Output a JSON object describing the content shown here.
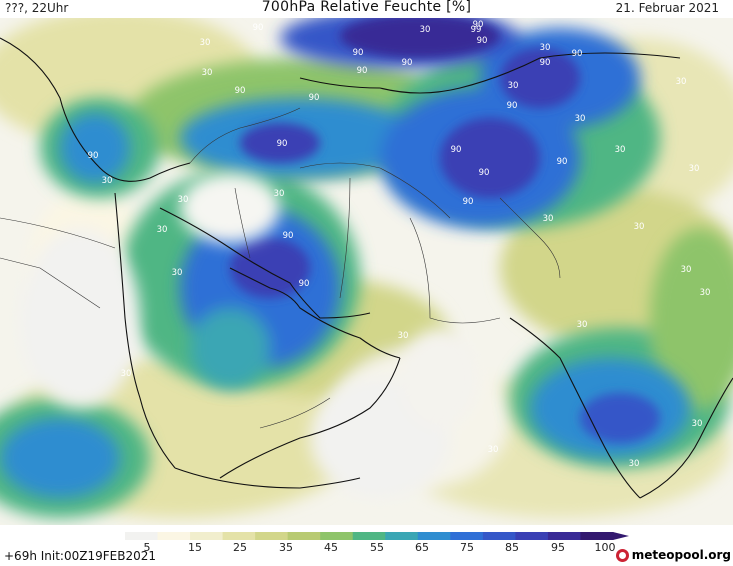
{
  "header": {
    "left": "???, 22Uhr",
    "title": "700hPa Relative Feuchte [%]",
    "date": "21. Februar 2021"
  },
  "footer": {
    "run_info": "+69h Init:00Z19FEB2021",
    "logo": "meteopool.org"
  },
  "colorbar": {
    "ticks": [
      "5",
      "15",
      "25",
      "35",
      "45",
      "55",
      "65",
      "75",
      "85",
      "95",
      "100"
    ],
    "colors": [
      "#f2f2f0",
      "#fbf6e4",
      "#f1eecd",
      "#e4e2a8",
      "#d2d68a",
      "#b8ca72",
      "#8ec46a",
      "#4fb684",
      "#3aa6b4",
      "#2f8dd0",
      "#2f6fd6",
      "#3557c8",
      "#3a40b4",
      "#392a96",
      "#33196f"
    ]
  },
  "map": {
    "contour_labels": [
      "90",
      "90",
      "90",
      "90",
      "90",
      "90",
      "90",
      "90",
      "90",
      "90",
      "90",
      "90",
      "90",
      "90",
      "90",
      "90",
      "90",
      "90",
      "90",
      "99",
      "30",
      "30",
      "30",
      "30",
      "30",
      "30",
      "30",
      "30",
      "30",
      "30",
      "30",
      "30",
      "30",
      "30",
      "30",
      "30",
      "30",
      "30",
      "30",
      "30",
      "30",
      "30",
      "30",
      "30"
    ]
  }
}
